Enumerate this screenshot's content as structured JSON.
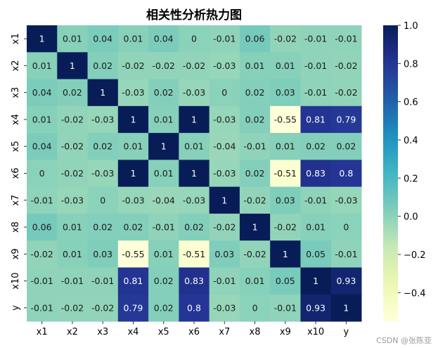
{
  "chart_data": {
    "type": "heatmap",
    "title": "相关性分析热力图",
    "row_labels": [
      "x1",
      "x2",
      "x3",
      "x4",
      "x5",
      "x6",
      "x7",
      "x8",
      "x9",
      "x10",
      "y"
    ],
    "col_labels": [
      "x1",
      "x2",
      "x3",
      "x4",
      "x5",
      "x6",
      "x7",
      "x8",
      "x9",
      "x10",
      "y"
    ],
    "values": [
      [
        1,
        0.01,
        0.04,
        0.01,
        0.04,
        0,
        -0.01,
        0.06,
        -0.02,
        -0.01,
        -0.01
      ],
      [
        0.01,
        1,
        0.02,
        -0.02,
        -0.02,
        -0.02,
        -0.03,
        0.01,
        0.01,
        -0.01,
        -0.02
      ],
      [
        0.04,
        0.02,
        1,
        -0.03,
        0.02,
        -0.03,
        0,
        0.02,
        0.03,
        -0.01,
        -0.02
      ],
      [
        0.01,
        -0.02,
        -0.03,
        1,
        0.01,
        1,
        -0.03,
        0.02,
        -0.55,
        0.81,
        0.79
      ],
      [
        0.04,
        -0.02,
        0.02,
        0.01,
        1,
        0.01,
        -0.04,
        -0.01,
        0.01,
        0.02,
        0.02
      ],
      [
        0,
        -0.02,
        -0.03,
        1,
        0.01,
        1,
        -0.03,
        0.02,
        -0.51,
        0.83,
        0.8
      ],
      [
        -0.01,
        -0.03,
        0,
        -0.03,
        -0.04,
        -0.03,
        1,
        -0.02,
        0.03,
        -0.01,
        -0.03
      ],
      [
        0.06,
        0.01,
        0.02,
        0.02,
        -0.01,
        0.02,
        -0.02,
        1,
        -0.02,
        0.01,
        0
      ],
      [
        -0.02,
        0.01,
        0.03,
        -0.55,
        0.01,
        -0.51,
        0.03,
        -0.02,
        1,
        0.05,
        -0.01
      ],
      [
        -0.01,
        -0.01,
        -0.01,
        0.81,
        0.02,
        0.83,
        -0.01,
        0.01,
        0.05,
        1,
        0.93
      ],
      [
        -0.01,
        -0.02,
        -0.02,
        0.79,
        0.02,
        0.8,
        -0.03,
        0,
        -0.01,
        0.93,
        1
      ]
    ],
    "colormap": "YlGnBu",
    "vmin": -0.55,
    "vmax": 1.0,
    "colorbar_ticks": [
      1.0,
      0.8,
      0.6,
      0.4,
      0.2,
      0.0,
      -0.2,
      -0.4
    ],
    "annotations": true
  },
  "watermark": "CSDN @张陈亚"
}
